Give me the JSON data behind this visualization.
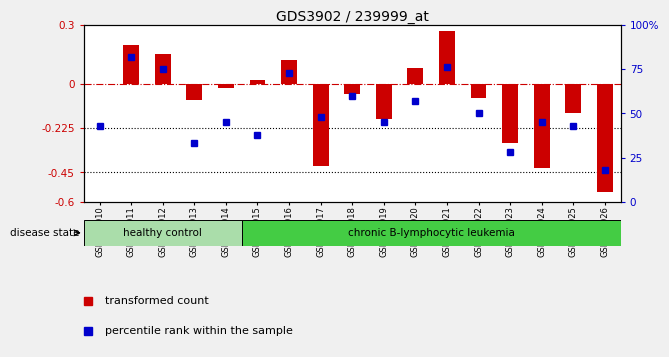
{
  "title": "GDS3902 / 239999_at",
  "samples": [
    "GSM658010",
    "GSM658011",
    "GSM658012",
    "GSM658013",
    "GSM658014",
    "GSM658015",
    "GSM658016",
    "GSM658017",
    "GSM658018",
    "GSM658019",
    "GSM658020",
    "GSM658021",
    "GSM658022",
    "GSM658023",
    "GSM658024",
    "GSM658025",
    "GSM658026"
  ],
  "red_bars": [
    0.0,
    0.2,
    0.15,
    -0.08,
    -0.02,
    0.02,
    0.12,
    -0.42,
    -0.05,
    -0.18,
    0.08,
    0.27,
    -0.07,
    -0.3,
    -0.43,
    -0.15,
    -0.55
  ],
  "blue_squares": [
    43,
    82,
    75,
    33,
    45,
    38,
    73,
    48,
    60,
    45,
    57,
    76,
    50,
    28,
    45,
    43,
    18
  ],
  "ylim_left": [
    -0.6,
    0.3
  ],
  "ylim_right": [
    0,
    100
  ],
  "yticks_left": [
    -0.6,
    -0.45,
    -0.225,
    0.0,
    0.3
  ],
  "ytick_labels_left": [
    "-0.6",
    "-0.45",
    "-0.225",
    "0",
    "0.3"
  ],
  "yticks_right": [
    0,
    25,
    50,
    75,
    100
  ],
  "ytick_labels_right": [
    "0",
    "25",
    "50",
    "75",
    "100%"
  ],
  "hlines_dotted": [
    -0.225,
    -0.45
  ],
  "healthy_count": 5,
  "chronic_count": 12,
  "healthy_label": "healthy control",
  "chronic_label": "chronic B-lymphocytic leukemia",
  "disease_state_label": "disease state",
  "legend_red": "transformed count",
  "legend_blue": "percentile rank within the sample",
  "bar_color": "#cc0000",
  "square_color": "#0000cc",
  "healthy_bg": "#aaddaa",
  "chronic_bg": "#44cc44",
  "zero_line_color": "#cc0000",
  "bar_width": 0.5,
  "bg_color": "#f0f0f0",
  "plot_bg": "#ffffff",
  "tick_label_color_left": "#cc0000",
  "tick_label_color_right": "#0000cc"
}
